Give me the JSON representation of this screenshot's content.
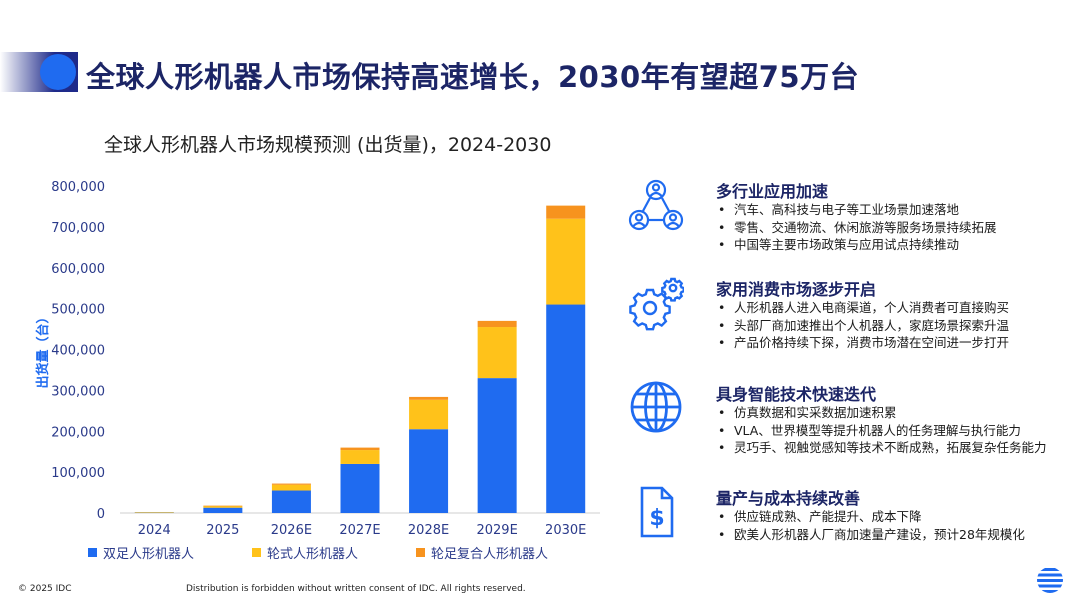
{
  "page": {
    "title": "全球人形机器人市场保持高速增长，2030年有望超75万台",
    "footer_copyright": "© 2025 IDC",
    "footer_notice": "Distribution is forbidden without written consent of IDC. All rights reserved."
  },
  "chart_data": {
    "type": "bar",
    "stacked": true,
    "title": "全球人形机器人市场规模预测 (出货量)，2024-2030",
    "ylabel": "出货量（台）",
    "xlabel": "",
    "ylim": [
      0,
      800000
    ],
    "yticks": [
      0,
      100000,
      200000,
      300000,
      400000,
      500000,
      600000,
      700000,
      800000
    ],
    "ytick_labels": [
      "0",
      "100,000",
      "200,000",
      "300,000",
      "400,000",
      "500,000",
      "600,000",
      "700,000",
      "800,000"
    ],
    "categories": [
      "2024",
      "2025",
      "2026E",
      "2027E",
      "2028E",
      "2029E",
      "2030E"
    ],
    "series": [
      {
        "name": "双足人形机器人",
        "color": "#1f6bf0",
        "values": [
          1500,
          13000,
          55000,
          120000,
          205000,
          330000,
          510000
        ]
      },
      {
        "name": "轮式人形机器人",
        "color": "#ffc21a",
        "values": [
          500,
          4000,
          14000,
          34000,
          72000,
          125000,
          210000
        ]
      },
      {
        "name": "轮足复合人形机器人",
        "color": "#f7931e",
        "values": [
          0,
          1000,
          3000,
          6000,
          7000,
          15000,
          32000
        ]
      }
    ],
    "grid": false,
    "legend": "bottom"
  },
  "panels": [
    {
      "icon": "people-network-icon",
      "heading": "多行业应用加速",
      "bullets": [
        "汽车、高科技与电子等工业场景加速落地",
        "零售、交通物流、休闲旅游等服务场景持续拓展",
        "中国等主要市场政策与应用试点持续推动"
      ]
    },
    {
      "icon": "gears-icon",
      "heading": "家用消费市场逐步开启",
      "bullets": [
        "人形机器人进入电商渠道，个人消费者可直接购买",
        "头部厂商加速推出个人机器人，家庭场景探索升温",
        "产品价格持续下探，消费市场潜在空间进一步打开"
      ]
    },
    {
      "icon": "globe-icon",
      "heading": "具身智能技术快速迭代",
      "bullets": [
        "仿真数据和实采数据加速积累",
        "VLA、世界模型等提升机器人的任务理解与执行能力",
        "灵巧手、视触觉感知等技术不断成熟，拓展复杂任务能力"
      ]
    },
    {
      "icon": "cost-document-icon",
      "heading": "量产与成本持续改善",
      "bullets": [
        "供应链成熟、产能提升、成本下降",
        "欧美人形机器人厂商加速量产建设，预计28年规模化"
      ]
    }
  ],
  "colors": {
    "accent": "#1f6bf0",
    "navy": "#1c2566"
  }
}
